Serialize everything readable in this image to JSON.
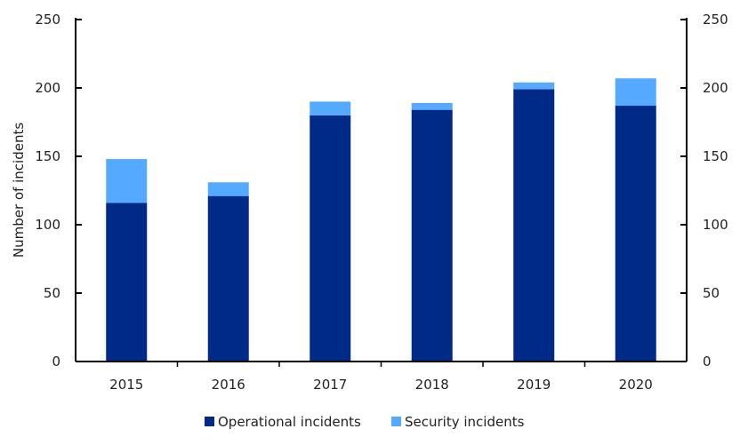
{
  "chart_data": {
    "type": "bar",
    "stacked": true,
    "categories": [
      "2015",
      "2016",
      "2017",
      "2018",
      "2019",
      "2020"
    ],
    "series": [
      {
        "name": "Operational incidents",
        "color": "#002A87",
        "values": [
          116,
          121,
          180,
          184,
          199,
          187
        ]
      },
      {
        "name": "Security incidents",
        "color": "#55AAFF",
        "values": [
          32,
          10,
          10,
          5,
          5,
          20
        ]
      }
    ],
    "ylabel": "Number of incidents",
    "ylim": [
      0,
      250
    ],
    "yticks": [
      "0",
      "50",
      "100",
      "150",
      "200",
      "250"
    ],
    "secondary_axis": true,
    "grid": false,
    "legend": "bottom"
  }
}
